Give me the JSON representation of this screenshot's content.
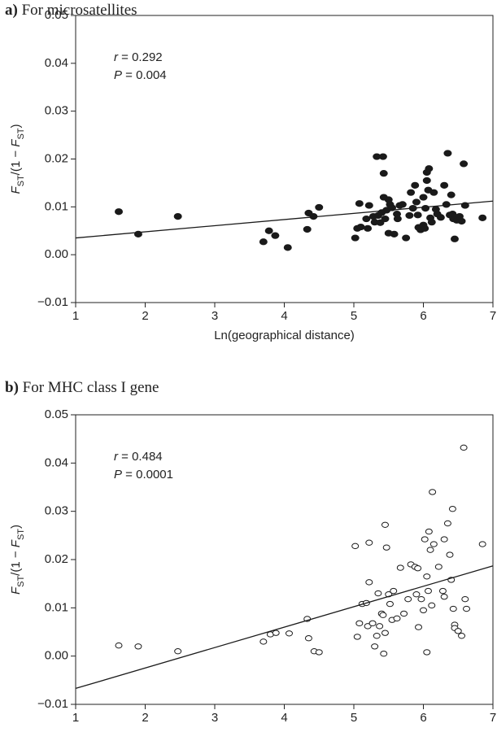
{
  "chart_data": [
    {
      "type": "scatter",
      "title": "a) For microsatellites",
      "xlabel": "Ln(geographical distance)",
      "ylabel": "FST/(1 − FST)",
      "annotations": [
        "r = 0.292",
        "P = 0.004"
      ],
      "marker": "filled",
      "color": "#1a1a1a",
      "xlim": [
        1,
        7
      ],
      "xticks": [
        1,
        2,
        3,
        4,
        5,
        6,
        7
      ],
      "ylim": [
        -0.01,
        0.05
      ],
      "yticks": [
        {
          "value": -0.01,
          "label": "−0.01"
        },
        {
          "value": 0,
          "label": "0.00"
        },
        {
          "value": 0.01,
          "label": "0.01"
        },
        {
          "value": 0.02,
          "label": "0.02"
        },
        {
          "value": 0.03,
          "label": "0.03"
        },
        {
          "value": 0.04,
          "label": "0.04"
        },
        {
          "value": 0.05,
          "label": "0.05"
        }
      ],
      "x": [
        1.62,
        1.9,
        2.47,
        3.7,
        3.78,
        3.87,
        4.05,
        4.33,
        4.35,
        4.42,
        4.5,
        5.02,
        5.05,
        5.08,
        5.1,
        5.18,
        5.2,
        5.22,
        5.28,
        5.3,
        5.33,
        5.35,
        5.38,
        5.4,
        5.42,
        5.43,
        5.43,
        5.45,
        5.47,
        5.5,
        5.5,
        5.52,
        5.55,
        5.58,
        5.62,
        5.66,
        5.7,
        5.75,
        5.8,
        5.82,
        5.85,
        5.88,
        5.9,
        5.92,
        5.93,
        5.96,
        6.0,
        6.02,
        6.03,
        6.05,
        6.05,
        6.07,
        6.08,
        6.1,
        6.12,
        6.15,
        6.18,
        6.2,
        6.25,
        6.3,
        6.33,
        6.35,
        6.4,
        6.42,
        6.43,
        6.45,
        6.48,
        6.52,
        6.55,
        6.58,
        6.6,
        6.85,
        5.63,
        6.0,
        6.38
      ],
      "values": [
        0.009,
        0.0043,
        0.008,
        0.0027,
        0.005,
        0.004,
        0.0015,
        0.0053,
        0.0087,
        0.008,
        0.0099,
        0.0035,
        0.0055,
        0.0107,
        0.0058,
        0.0075,
        0.0055,
        0.0103,
        0.008,
        0.0068,
        0.0205,
        0.0082,
        0.0067,
        0.0088,
        0.0205,
        0.017,
        0.012,
        0.0075,
        0.0093,
        0.0045,
        0.0115,
        0.0105,
        0.0098,
        0.0043,
        0.0085,
        0.0103,
        0.0105,
        0.0035,
        0.0082,
        0.013,
        0.0097,
        0.0145,
        0.011,
        0.0083,
        0.0057,
        0.0052,
        0.0062,
        0.0055,
        0.0097,
        0.0155,
        0.0172,
        0.0135,
        0.018,
        0.0077,
        0.0068,
        0.013,
        0.0095,
        0.0085,
        0.0078,
        0.0145,
        0.0105,
        0.0212,
        0.0125,
        0.0085,
        0.0075,
        0.0033,
        0.0072,
        0.008,
        0.007,
        0.019,
        0.0103,
        0.0077,
        0.0075,
        0.012,
        0.0083
      ],
      "fit": {
        "x": [
          1,
          7
        ],
        "values": [
          0.0035,
          0.0112
        ]
      }
    },
    {
      "type": "scatter",
      "title": "b) For MHC class I gene",
      "xlabel": "Ln(geographical distance)",
      "ylabel": "FST/(1 − FST)",
      "annotations": [
        "r = 0.484",
        "P = 0.0001"
      ],
      "marker": "open",
      "color": "#1a1a1a",
      "xlim": [
        1,
        7
      ],
      "xticks": [
        1,
        2,
        3,
        4,
        5,
        6,
        7
      ],
      "ylim": [
        -0.01,
        0.05
      ],
      "yticks": [
        {
          "value": -0.01,
          "label": "−0.01"
        },
        {
          "value": 0,
          "label": "0.00"
        },
        {
          "value": 0.01,
          "label": "0.01"
        },
        {
          "value": 0.02,
          "label": "0.02"
        },
        {
          "value": 0.03,
          "label": "0.03"
        },
        {
          "value": 0.04,
          "label": "0.04"
        },
        {
          "value": 0.05,
          "label": "0.05"
        }
      ],
      "x": [
        1.62,
        1.9,
        2.47,
        3.7,
        3.8,
        3.88,
        4.07,
        4.33,
        4.35,
        4.43,
        4.5,
        5.02,
        5.05,
        5.08,
        5.12,
        5.18,
        5.2,
        5.22,
        5.22,
        5.27,
        5.3,
        5.33,
        5.35,
        5.37,
        5.4,
        5.42,
        5.43,
        5.45,
        5.45,
        5.47,
        5.5,
        5.52,
        5.55,
        5.57,
        5.62,
        5.67,
        5.72,
        5.78,
        5.82,
        5.88,
        5.9,
        5.92,
        5.93,
        5.97,
        6.0,
        6.02,
        6.05,
        6.05,
        6.07,
        6.08,
        6.1,
        6.12,
        6.13,
        6.15,
        6.22,
        6.28,
        6.3,
        6.3,
        6.35,
        6.38,
        6.4,
        6.42,
        6.43,
        6.45,
        6.45,
        6.5,
        6.55,
        6.58,
        6.6,
        6.62,
        6.85
      ],
      "values": [
        0.0022,
        0.002,
        0.001,
        0.003,
        0.0045,
        0.0048,
        0.0047,
        0.0077,
        0.0037,
        0.001,
        0.0008,
        0.0228,
        0.004,
        0.0068,
        0.0108,
        0.011,
        0.0062,
        0.0235,
        0.0153,
        0.0068,
        0.002,
        0.0042,
        0.013,
        0.0062,
        0.0088,
        0.0085,
        0.0005,
        0.0048,
        0.0272,
        0.0225,
        0.0128,
        0.0108,
        0.0075,
        0.0135,
        0.0078,
        0.0183,
        0.0088,
        0.0118,
        0.019,
        0.0185,
        0.0128,
        0.0182,
        0.006,
        0.0118,
        0.0095,
        0.0242,
        0.0165,
        0.0008,
        0.0135,
        0.0258,
        0.022,
        0.0105,
        0.034,
        0.0232,
        0.0185,
        0.0135,
        0.0242,
        0.0123,
        0.0275,
        0.021,
        0.0158,
        0.0305,
        0.0098,
        0.0065,
        0.0058,
        0.0052,
        0.0042,
        0.0432,
        0.0118,
        0.0098,
        0.0232
      ],
      "fit": {
        "x": [
          1,
          7
        ],
        "values": [
          -0.0067,
          0.0187
        ]
      }
    }
  ]
}
